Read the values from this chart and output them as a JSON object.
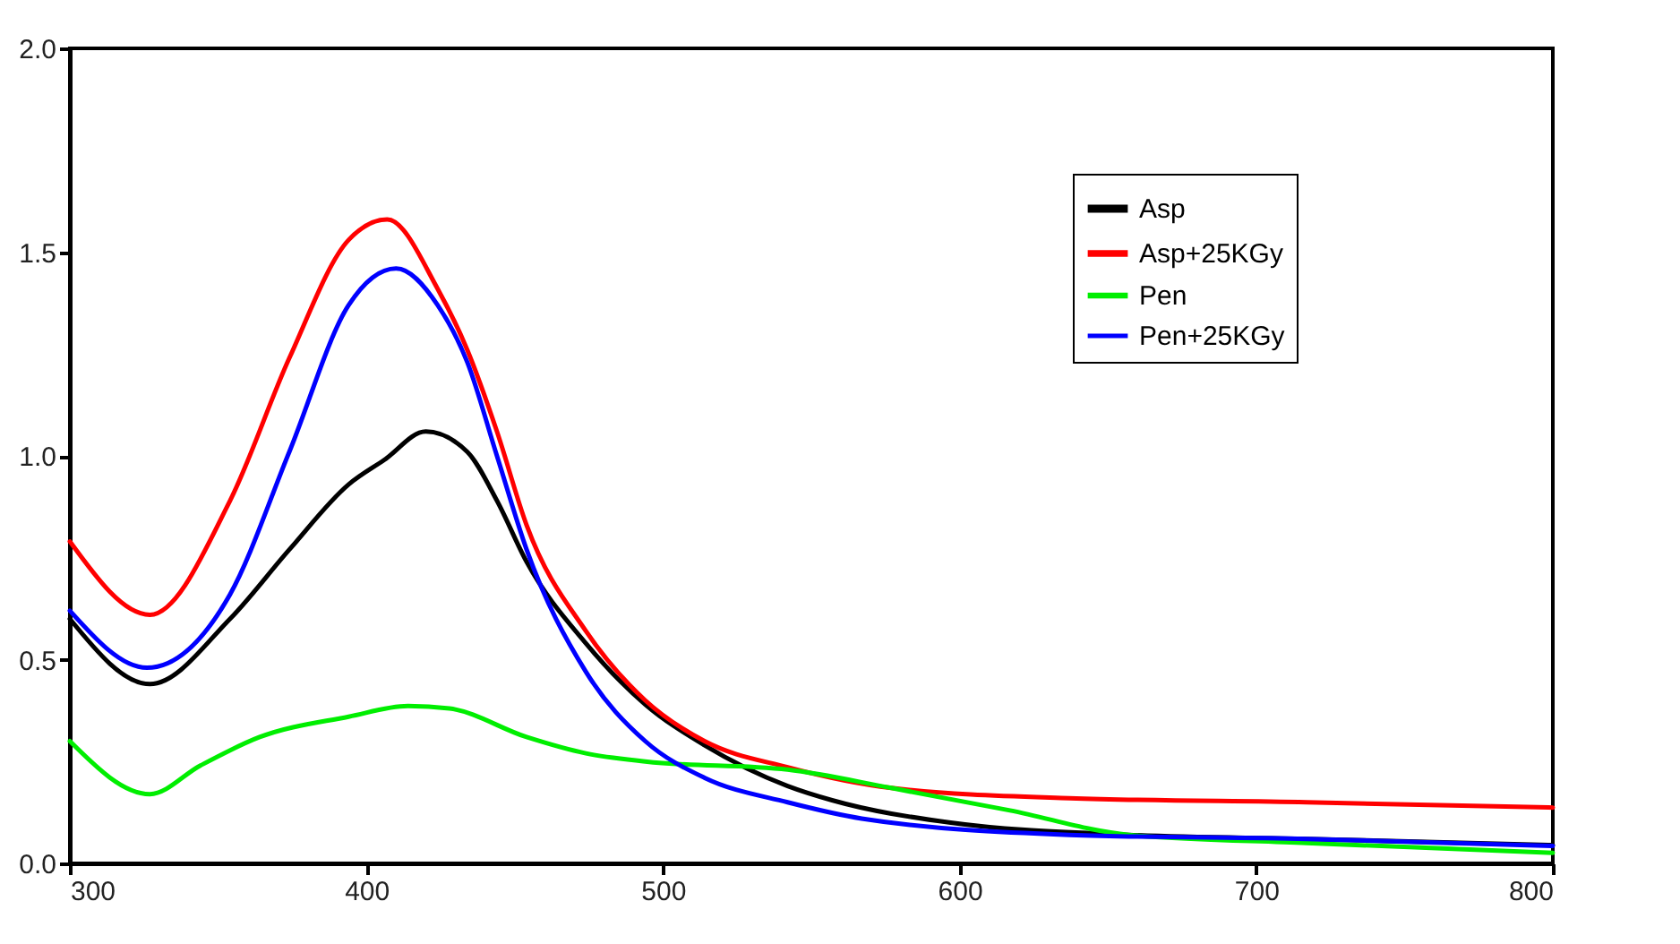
{
  "chart_data": {
    "type": "line",
    "xlim": [
      300,
      800
    ],
    "xticks": [
      300,
      400,
      500,
      600,
      700,
      800
    ],
    "ylim": [
      0,
      2
    ],
    "yticks": [
      {
        "value": 0,
        "label": "0.0"
      },
      {
        "value": 0.5,
        "label": "0.5"
      },
      {
        "value": 1,
        "label": "1.0"
      },
      {
        "value": 1.5,
        "label": "1.5"
      },
      {
        "value": 2,
        "label": "2.0"
      }
    ],
    "grid": false,
    "legend": "top right",
    "line_style": "solid",
    "series": [
      {
        "name": "Asp",
        "color": "#000000",
        "x": [
          300,
          327,
          354,
          374,
          394,
          406,
          420,
          434,
          444,
          454,
          474,
          494,
          514,
          542,
          557,
          597,
          657,
          717,
          800
        ],
        "values": [
          0.6,
          0.44,
          0.6,
          0.77,
          0.93,
          0.99,
          1.06,
          1.01,
          0.89,
          0.74,
          0.54,
          0.39,
          0.29,
          0.19,
          0.155,
          0.1,
          0.07,
          0.06,
          0.045
        ]
      },
      {
        "name": "Asp+25KGy",
        "color": "#ff0000",
        "x": [
          300,
          327,
          354,
          374,
          394,
          407,
          424,
          434,
          444,
          454,
          474,
          494,
          514,
          542,
          577,
          637,
          717,
          800
        ],
        "values": [
          0.79,
          0.61,
          0.89,
          1.24,
          1.53,
          1.58,
          1.41,
          1.26,
          1.06,
          0.83,
          0.57,
          0.4,
          0.3,
          0.236,
          0.185,
          0.16,
          0.15,
          0.137
        ]
      },
      {
        "name": "Pen",
        "color": "#00ee00",
        "x": [
          300,
          327,
          344,
          364,
          394,
          414,
          428,
          454,
          474,
          494,
          542,
          577,
          617,
          657,
          717,
          800
        ],
        "values": [
          0.3,
          0.17,
          0.24,
          0.31,
          0.36,
          0.386,
          0.38,
          0.31,
          0.27,
          0.25,
          0.23,
          0.185,
          0.13,
          0.07,
          0.05,
          0.026
        ]
      },
      {
        "name": "Pen+25KGy",
        "color": "#0000ff",
        "x": [
          300,
          326,
          354,
          374,
          394,
          410,
          424,
          434,
          444,
          454,
          474,
          494,
          514,
          542,
          567,
          637,
          717,
          800
        ],
        "values": [
          0.62,
          0.48,
          0.66,
          1.01,
          1.37,
          1.46,
          1.37,
          1.23,
          1.0,
          0.77,
          0.47,
          0.3,
          0.21,
          0.15,
          0.11,
          0.07,
          0.06,
          0.043
        ]
      }
    ]
  }
}
